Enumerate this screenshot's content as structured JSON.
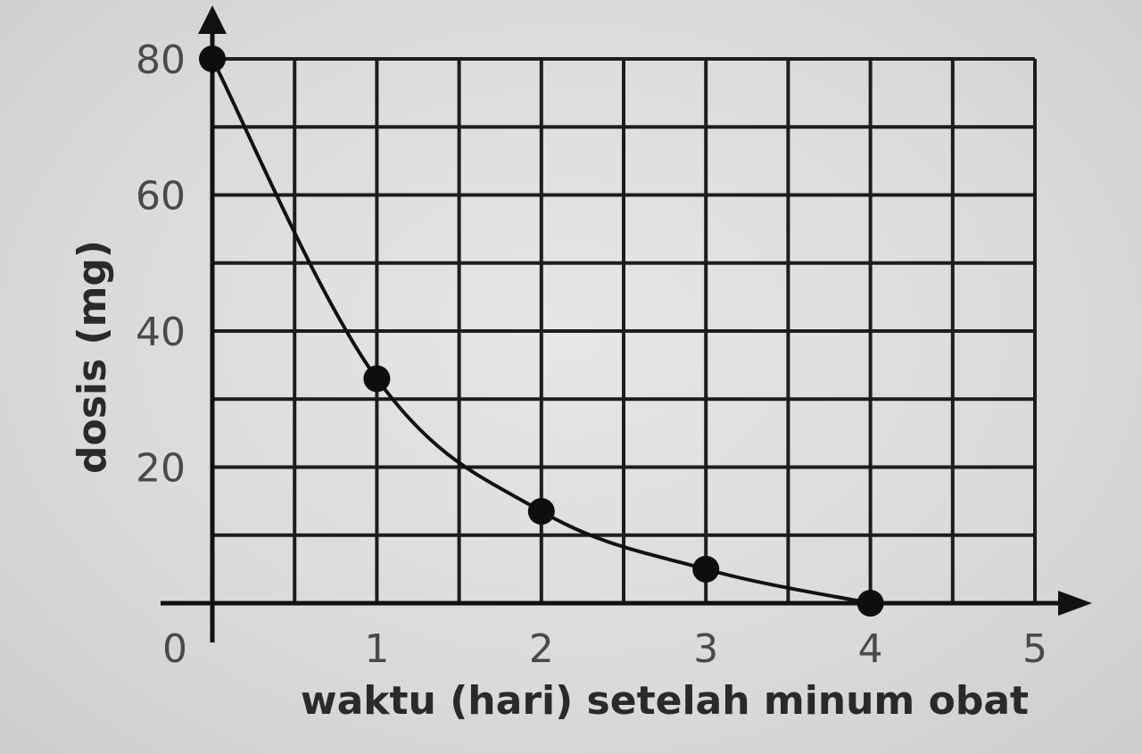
{
  "chart_data": {
    "type": "line",
    "title": "",
    "xlabel": "waktu (hari) setelah minum obat",
    "ylabel": "dosis (mg)",
    "xlim": [
      0,
      5
    ],
    "ylim": [
      0,
      80
    ],
    "grid": true,
    "x_ticks": [
      "0",
      "1",
      "2",
      "3",
      "4",
      "5"
    ],
    "y_ticks": [
      "20",
      "40",
      "60",
      "80"
    ],
    "x_tick_values": [
      0,
      1,
      2,
      3,
      4,
      5
    ],
    "y_tick_values": [
      20,
      40,
      60,
      80
    ],
    "x_grid_step": 0.5,
    "y_grid_step": 10,
    "series": [
      {
        "x": [
          0,
          1,
          2,
          3,
          4
        ],
        "values": [
          80,
          33,
          13.5,
          5,
          0
        ]
      }
    ],
    "line_color": "#111111"
  }
}
